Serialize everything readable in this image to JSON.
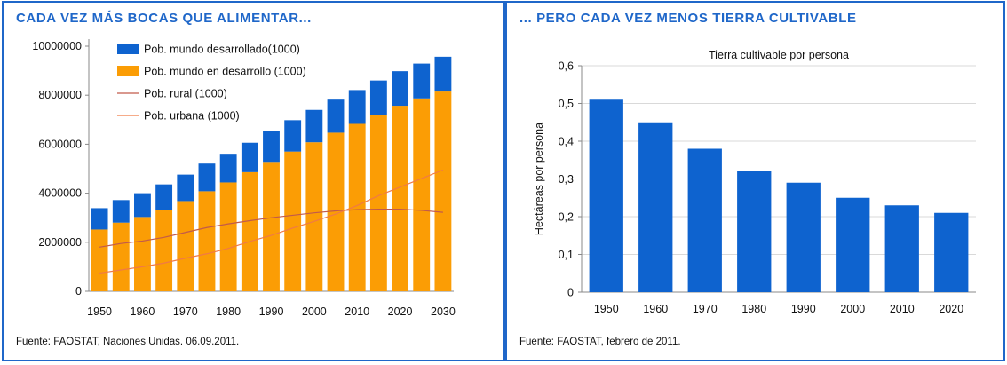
{
  "left_panel": {
    "title": "CADA VEZ MÁS BOCAS QUE ALIMENTAR...",
    "source": "Fuente: FAOSTAT, Naciones Unidas. 06.09.2011."
  },
  "right_panel": {
    "title": "... PERO CADA VEZ MENOS TIERRA CULTIVABLE",
    "source": "Fuente: FAOSTAT, febrero de 2011."
  },
  "colors": {
    "accent": "#1f67c9",
    "bar_blue": "#0e63cf",
    "bar_orange": "#fb9d05",
    "rural_line": "#c25a4a",
    "urban_line": "#f07a45"
  },
  "chart_data": [
    {
      "type": "bar",
      "stacked": true,
      "categories": [
        "1950",
        "1955",
        "1960",
        "1965",
        "1970",
        "1975",
        "1980",
        "1985",
        "1990",
        "1995",
        "2000",
        "2005",
        "2010",
        "2015",
        "2020",
        "2025",
        "2030"
      ],
      "x_tick_labels": [
        "1950",
        "1960",
        "1970",
        "1980",
        "1990",
        "2000",
        "2010",
        "2020",
        "2030"
      ],
      "series": [
        {
          "name": "Pob. mundo en desarrollo (1000)",
          "kind": "bar",
          "color": "#fb9d05",
          "values": [
            2520000,
            2800000,
            3030000,
            3330000,
            3680000,
            4080000,
            4440000,
            4860000,
            5280000,
            5700000,
            6080000,
            6470000,
            6830000,
            7200000,
            7570000,
            7870000,
            8150000
          ]
        },
        {
          "name": "Pob. mundo desarrollado(1000)",
          "kind": "bar",
          "color": "#0e63cf",
          "values": [
            870000,
            920000,
            970000,
            1030000,
            1080000,
            1130000,
            1170000,
            1200000,
            1250000,
            1280000,
            1320000,
            1350000,
            1380000,
            1400000,
            1410000,
            1420000,
            1420000
          ]
        },
        {
          "name": "Pob. rural (1000)",
          "kind": "line",
          "color": "#c25a4a",
          "values": [
            1800000,
            1950000,
            2050000,
            2200000,
            2400000,
            2600000,
            2750000,
            2880000,
            3000000,
            3100000,
            3200000,
            3280000,
            3330000,
            3350000,
            3350000,
            3300000,
            3220000
          ]
        },
        {
          "name": "Pob. urbana (1000)",
          "kind": "line",
          "color": "#f07a45",
          "values": [
            740000,
            870000,
            1000000,
            1150000,
            1350000,
            1530000,
            1750000,
            2030000,
            2280000,
            2580000,
            2850000,
            3150000,
            3500000,
            3900000,
            4250000,
            4600000,
            4950000
          ]
        }
      ],
      "y_ticks": [
        "0",
        "2000000",
        "4000000",
        "6000000",
        "8000000",
        "10000000"
      ],
      "ylim": [
        0,
        10000000
      ],
      "legend_position": "top-left",
      "title": "",
      "xlabel": "",
      "ylabel": ""
    },
    {
      "type": "bar",
      "title": "Tierra cultivable por persona",
      "categories": [
        "1950",
        "1960",
        "1970",
        "1980",
        "1990",
        "2000",
        "2010",
        "2020"
      ],
      "values": [
        0.51,
        0.45,
        0.38,
        0.32,
        0.29,
        0.25,
        0.23,
        0.21
      ],
      "color": "#0e63cf",
      "y_ticks": [
        "0",
        "0,1",
        "0,2",
        "0,3",
        "0,4",
        "0,5",
        "0,6"
      ],
      "ylim": [
        0,
        0.6
      ],
      "ylabel": "Hectáreas por persona",
      "xlabel": "",
      "grid": true
    }
  ]
}
